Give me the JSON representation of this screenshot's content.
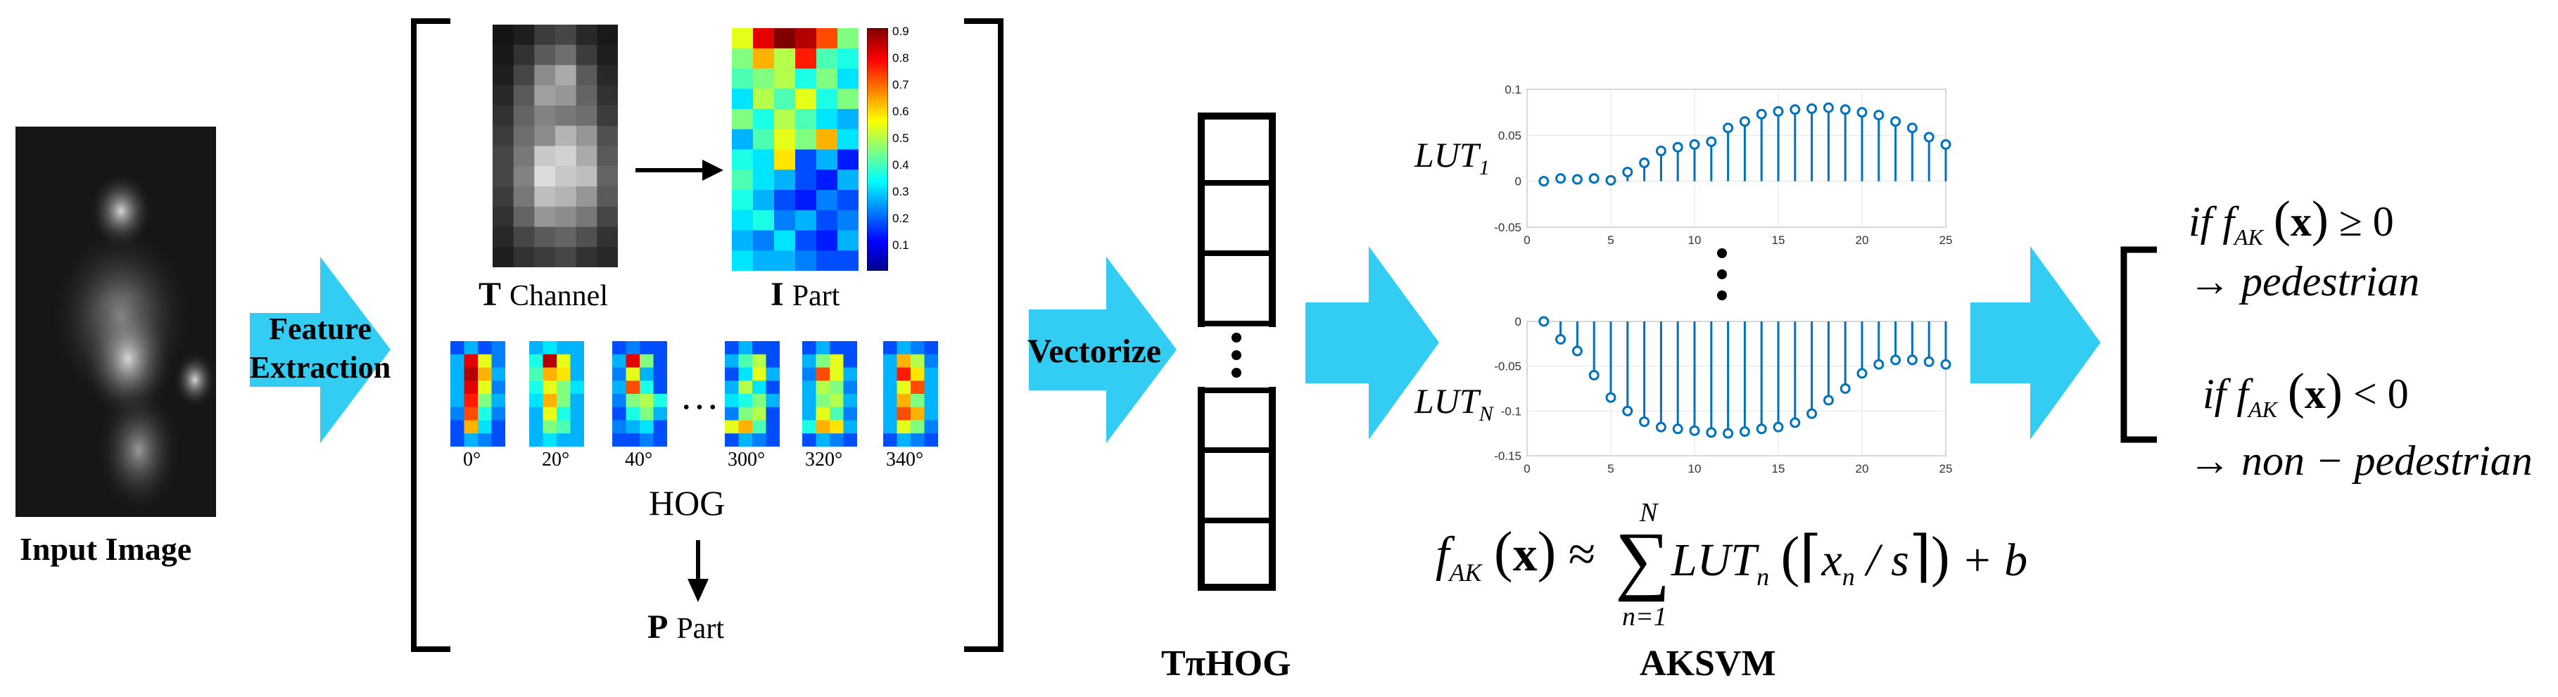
{
  "input": {
    "label": "Input Image"
  },
  "arrows": {
    "feature_extraction": [
      "Feature",
      "Extraction"
    ],
    "vectorize": "Vectorize"
  },
  "features": {
    "t_channel": {
      "letter": "T",
      "text": "Channel"
    },
    "i_part": {
      "letter": "I",
      "text": "Part",
      "colorbar_ticks": [
        "0.9",
        "0.8",
        "0.7",
        "0.6",
        "0.5",
        "0.4",
        "0.3",
        "0.2",
        "0.1"
      ]
    },
    "hog": {
      "label": "HOG",
      "angles": [
        "0°",
        "20°",
        "40°",
        "300°",
        "320°",
        "340°"
      ],
      "ellipsis": "…"
    },
    "p_part": {
      "letter": "P",
      "text": "Part"
    }
  },
  "vector": {
    "label": "TπHOG"
  },
  "aksvm": {
    "label": "AKSVM",
    "lut1_label": "LUT",
    "lut1_sub": "1",
    "lutN_label": "LUT",
    "lutN_sub": "N",
    "formula": {
      "lhs": "f",
      "lhs_sub": "AK",
      "x": "x",
      "approx": "≈",
      "sum_top": "N",
      "sum_bottom": "n=1",
      "lut": "LUT",
      "lut_sub": "n",
      "rest": "x",
      "rest_sub": "n",
      "slash": "/ s",
      "plus_b": "+ b"
    }
  },
  "decision": {
    "cond1": "if",
    "rel1": "≥ 0",
    "out1": "→ pedestrian",
    "cond2": "if",
    "rel2": "< 0",
    "out2": "→ non − pedestrian",
    "f": "f",
    "f_sub": "AK",
    "x": "x"
  },
  "chart_data": [
    {
      "type": "stem",
      "x": [
        1,
        2,
        3,
        4,
        5,
        6,
        7,
        8,
        9,
        10,
        11,
        12,
        13,
        14,
        15,
        16,
        17,
        18,
        19,
        20,
        21,
        22,
        23,
        24,
        25
      ],
      "values": [
        0.0,
        0.003,
        0.002,
        0.003,
        0.001,
        0.01,
        0.02,
        0.033,
        0.037,
        0.04,
        0.043,
        0.058,
        0.065,
        0.073,
        0.076,
        0.078,
        0.079,
        0.08,
        0.078,
        0.075,
        0.072,
        0.065,
        0.058,
        0.048,
        0.04
      ],
      "xlim": [
        0,
        25
      ],
      "ylim": [
        -0.05,
        0.1
      ],
      "yticks": [
        "0.1",
        "0.05",
        "0",
        "-0.05"
      ],
      "xticks": [
        "0",
        "5",
        "10",
        "15",
        "20",
        "25"
      ],
      "color": "#0072BD"
    },
    {
      "type": "stem",
      "x": [
        1,
        2,
        3,
        4,
        5,
        6,
        7,
        8,
        9,
        10,
        11,
        12,
        13,
        14,
        15,
        16,
        17,
        18,
        19,
        20,
        21,
        22,
        23,
        24,
        25
      ],
      "values": [
        0.0,
        -0.02,
        -0.033,
        -0.06,
        -0.085,
        -0.1,
        -0.112,
        -0.118,
        -0.12,
        -0.122,
        -0.124,
        -0.125,
        -0.123,
        -0.12,
        -0.118,
        -0.113,
        -0.103,
        -0.088,
        -0.075,
        -0.058,
        -0.048,
        -0.043,
        -0.043,
        -0.045,
        -0.048
      ],
      "xlim": [
        0,
        25
      ],
      "ylim": [
        -0.15,
        0
      ],
      "yticks": [
        "0",
        "-0.05",
        "-0.1",
        "-0.15"
      ],
      "xticks": [
        "0",
        "5",
        "10",
        "15",
        "20",
        "25"
      ],
      "color": "#0072BD"
    }
  ],
  "colors": {
    "arrow": "#33CCF2",
    "stem": "#0072BD",
    "border": "#000000"
  }
}
